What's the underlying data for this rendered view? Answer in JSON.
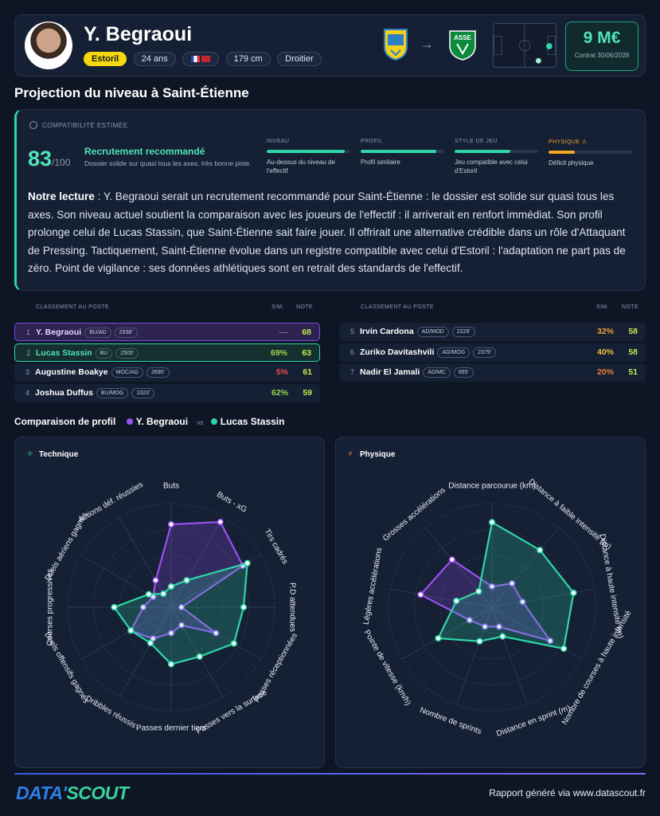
{
  "player": {
    "name": "Y. Begraoui",
    "club": "Estoril",
    "age": "24 ans",
    "height": "179 cm",
    "foot": "Droitier"
  },
  "transfer": {
    "from_club_icon": "estoril-crest",
    "arrow_icon": "arrow-right-icon",
    "to_club_icon": "asse-crest",
    "to_club_short": "ASSE",
    "price": "9 M€",
    "contract": "Contrat 30/06/2028"
  },
  "colors": {
    "accent": "#4fe3b8",
    "player_a": "#9b4ff0",
    "player_b": "#2fd7a6",
    "physique_warning": "#f5a623"
  },
  "section_title": "Projection du niveau à Saint-Étienne",
  "compat": {
    "label": "COMPATIBILITÉ ESTIMÉE",
    "score": "83",
    "score_max": "/100",
    "verdict": "Recrutement recommandé",
    "verdict_sub": "Dossier solide sur quasi tous les axes, très bonne piste.",
    "criteria": [
      {
        "title": "NIVEAU",
        "fill": 0.93,
        "color": "#2fd7a6",
        "desc": "Au-dessus du niveau de l'effectif"
      },
      {
        "title": "PROFIL",
        "fill": 0.9,
        "color": "#2fd7a6",
        "desc": "Profil similaire"
      },
      {
        "title": "STYLE DE JEU",
        "fill": 0.67,
        "color": "#2fd7a6",
        "desc": "Jeu compatible avec celui d'Estoril"
      },
      {
        "title": "PHYSIQUE ⚠",
        "fill": 0.31,
        "color": "#f5a623",
        "desc": "Déficit physique"
      }
    ],
    "reading_label": "Notre lecture",
    "reading_text": " : Y. Begraoui serait un recrutement recommandé pour Saint-Étienne : le dossier est solide sur quasi tous les axes. Son niveau actuel soutient la comparaison avec les joueurs de l'effectif : il arriverait en renfort immédiat. Son profil prolonge celui de Lucas Stassin, que Saint-Étienne sait faire jouer. Il offrirait une alternative crédible dans un rôle d'Attaquant de Pressing. Tactiquement, Saint-Étienne évolue dans un registre compatible avec celui d'Estoril : l'adaptation ne part pas de zéro. Point de vigilance : ses données athlétiques sont en retrait des standards de l'effectif."
  },
  "ranking": {
    "header_label": "CLASSEMENT AU POSTE",
    "header_sim": "SIM.",
    "header_note": "NOTE",
    "left": [
      {
        "rank": "1",
        "name": "Y. Begraoui",
        "pos": "BU/AD",
        "mins": "2938'",
        "sim": "—",
        "sim_color": "#6b7690",
        "note": "68",
        "style": "target"
      },
      {
        "rank": "2",
        "name": "Lucas Stassin",
        "pos": "BU",
        "mins": "2505'",
        "sim": "69%",
        "sim_color": "#9bd84a",
        "note": "63",
        "style": "match"
      },
      {
        "rank": "3",
        "name": "Augustine Boakye",
        "pos": "MOC/AG",
        "mins": "2690'",
        "sim": "5%",
        "sim_color": "#ef4d4d",
        "note": "61",
        "style": ""
      },
      {
        "rank": "4",
        "name": "Joshua Duffus",
        "pos": "BU/MOG",
        "mins": "1023'",
        "sim": "62%",
        "sim_color": "#9bd84a",
        "note": "59",
        "style": ""
      }
    ],
    "right": [
      {
        "rank": "5",
        "name": "Irvin Cardona",
        "pos": "AD/MOD",
        "mins": "2229'",
        "sim": "32%",
        "sim_color": "#f0a33a",
        "note": "58",
        "style": ""
      },
      {
        "rank": "6",
        "name": "Zuriko Davitashvili",
        "pos": "AG/MOG",
        "mins": "2379'",
        "sim": "40%",
        "sim_color": "#e8c43a",
        "note": "58",
        "style": ""
      },
      {
        "rank": "7",
        "name": "Nadir El Jamali",
        "pos": "AD/MC",
        "mins": "665'",
        "sim": "20%",
        "sim_color": "#f07a3a",
        "note": "51",
        "style": ""
      }
    ]
  },
  "comparison": {
    "title": "Comparaison de profil",
    "player_a": "Y. Begraoui",
    "vs": "vs",
    "player_b": "Lucas Stassin"
  },
  "chart_data": [
    {
      "type": "radar",
      "title": "Technique",
      "axes": [
        "Buts",
        "Buts - xG",
        "Tirs cadrés",
        "P.D attendues",
        "Passes réceptionnées",
        "Passes vers la surface",
        "Passes dernier tiers",
        "Dribbles réussis",
        "Duels offensifs gagnés",
        "Courses progressives",
        "Duels aériens gagnés",
        "Actions déf. réussies"
      ],
      "range": [
        0,
        100
      ],
      "grid": true,
      "series": [
        {
          "name": "Y. Begraoui",
          "color": "#9b4ff0",
          "values": [
            80,
            95,
            80,
            10,
            50,
            20,
            25,
            35,
            45,
            27,
            20,
            30
          ]
        },
        {
          "name": "Lucas Stassin",
          "color": "#2fd7a6",
          "values": [
            20,
            30,
            85,
            70,
            70,
            55,
            55,
            40,
            45,
            55,
            25,
            15
          ]
        }
      ]
    },
    {
      "type": "radar",
      "title": "Physique",
      "axes": [
        "Distance parcourue (km)",
        "Distance à faible intensité (m)",
        "Distance à haute intensité (m)",
        "Nombre de courses à haute intensité",
        "Distance en sprint (m)",
        "Nombre de sprints",
        "Pointe de vitesse (km/h)",
        "Légères accélérations",
        "Grosses accélérations"
      ],
      "range": [
        0,
        100
      ],
      "grid": true,
      "series": [
        {
          "name": "Y. Begraoui",
          "color": "#9b4ff0",
          "values": [
            20,
            30,
            30,
            65,
            20,
            20,
            25,
            70,
            60
          ]
        },
        {
          "name": "Lucas Stassin",
          "color": "#2fd7a6",
          "values": [
            82,
            72,
            80,
            80,
            30,
            35,
            60,
            35,
            20
          ]
        }
      ]
    }
  ],
  "footer": {
    "logo_a": "DATA'",
    "logo_b": "SCOUT",
    "text": "Rapport généré via www.datascout.fr"
  }
}
